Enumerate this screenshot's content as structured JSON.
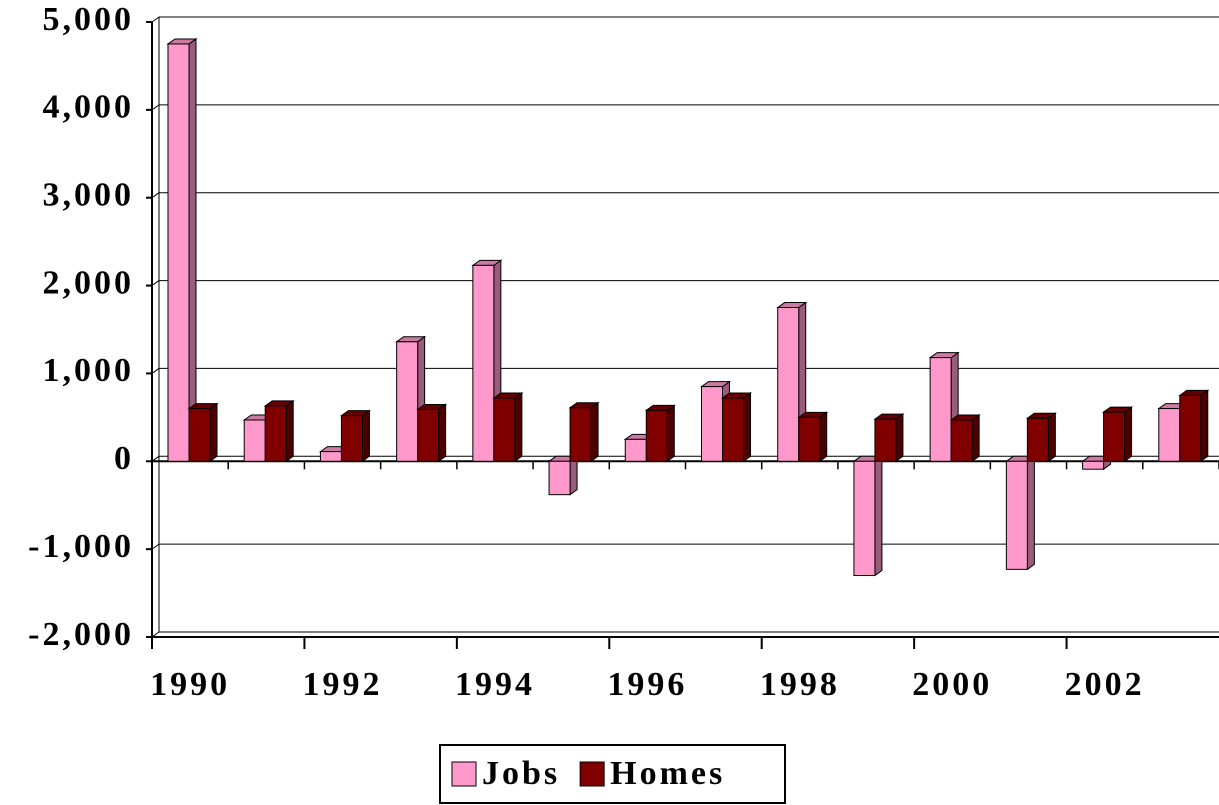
{
  "chart_data": {
    "type": "bar",
    "categories": [
      "1990",
      null,
      "1992",
      null,
      "1994",
      null,
      "1996",
      null,
      "1998",
      null,
      "2000",
      null,
      "2002",
      null
    ],
    "series": [
      {
        "name": "Jobs",
        "color": "#ff99cc",
        "values": [
          4750,
          470,
          110,
          1360,
          2230,
          -380,
          250,
          850,
          1750,
          -1300,
          1180,
          -1230,
          -90,
          600
        ]
      },
      {
        "name": "Homes",
        "color": "#800000",
        "values": [
          600,
          630,
          520,
          590,
          720,
          610,
          580,
          720,
          500,
          480,
          470,
          490,
          560,
          750
        ]
      }
    ],
    "ylim": [
      -2000,
      5000
    ],
    "yticks": [
      {
        "value": -2000,
        "label": "-2,000"
      },
      {
        "value": -1000,
        "label": "-1,000"
      },
      0,
      {
        "value": 1000,
        "label": "1,000"
      },
      {
        "value": 2000,
        "label": "2,000"
      },
      {
        "value": 3000,
        "label": "3,000"
      },
      {
        "value": 4000,
        "label": "4,000"
      },
      {
        "value": 5000,
        "label": "5,000"
      }
    ],
    "grid": true,
    "legend": "bottom"
  }
}
